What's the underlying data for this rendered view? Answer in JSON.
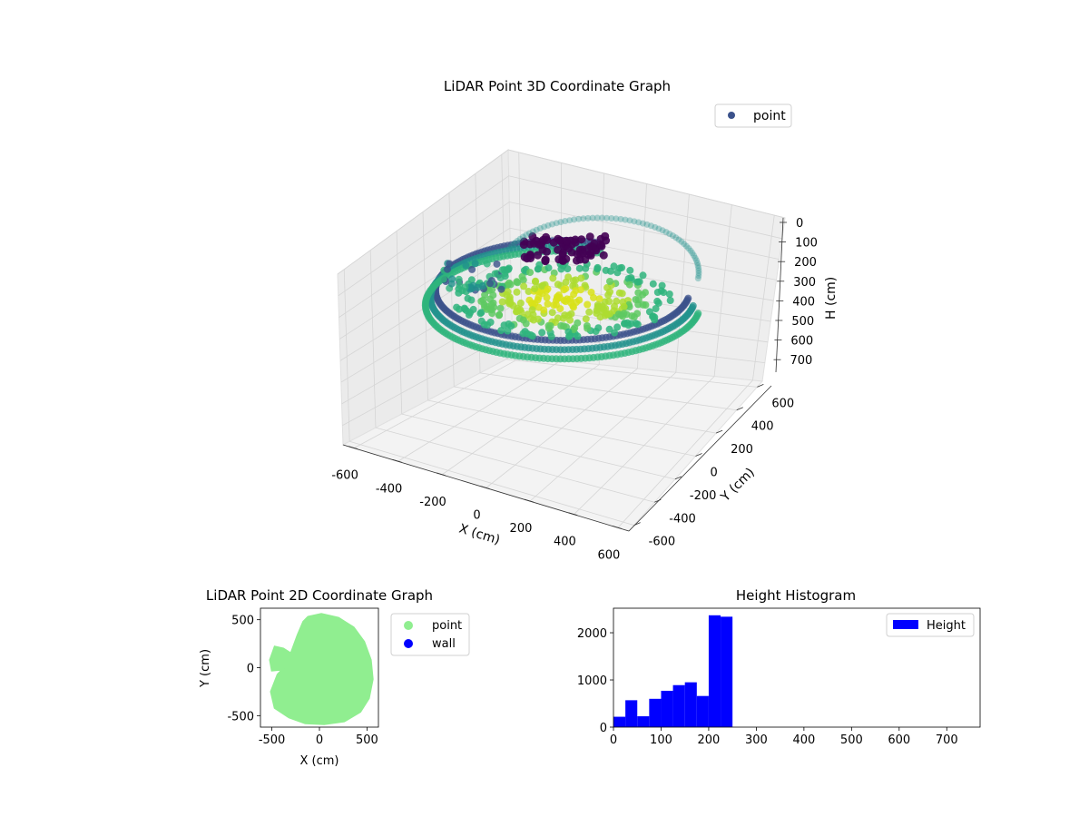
{
  "figure": {
    "background": "#ffffff"
  },
  "chart_data": [
    {
      "type": "scatter",
      "projection": "3d",
      "title": "LiDAR Point 3D Coordinate Graph",
      "xlabel": "X (cm)",
      "ylabel": "Y (cm)",
      "zlabel": "H (cm)",
      "xlim": [
        -650,
        650
      ],
      "ylim": [
        -650,
        650
      ],
      "zlim": [
        750,
        0
      ],
      "z_inverted": true,
      "xticks": [
        -600,
        -400,
        -200,
        0,
        200,
        400,
        600
      ],
      "yticks": [
        -600,
        -400,
        -200,
        0,
        200,
        400,
        600
      ],
      "zticks": [
        0,
        100,
        200,
        300,
        400,
        500,
        600,
        700
      ],
      "grid": true,
      "colormap": "viridis",
      "legend": {
        "placement": "upper-right",
        "entries": [
          {
            "label": "point",
            "color": "#3b528b"
          }
        ]
      }
    },
    {
      "type": "scatter",
      "title": "LiDAR Point 2D Coordinate Graph",
      "xlabel": "X (cm)",
      "ylabel": "Y (cm)",
      "xlim": [
        -620,
        620
      ],
      "ylim": [
        -620,
        620
      ],
      "xticks": [
        -500,
        0,
        500
      ],
      "yticks": [
        -500,
        0,
        500
      ],
      "aspect": "equal",
      "series": [
        {
          "name": "point",
          "color": "#90ee90"
        },
        {
          "name": "wall",
          "color": "#0000ff"
        }
      ],
      "legend": {
        "placement": "outside-right"
      }
    },
    {
      "type": "bar",
      "subtype": "histogram",
      "title": "Height Histogram",
      "color": "#0000ff",
      "bin_edges": [
        0,
        25,
        50,
        75,
        100,
        125,
        150,
        175,
        200,
        225,
        250,
        275
      ],
      "values": [
        220,
        570,
        230,
        600,
        770,
        890,
        950,
        660,
        2370,
        2340,
        0
      ],
      "xlim": [
        0,
        770
      ],
      "ylim": [
        0,
        2520
      ],
      "xticks": [
        0,
        100,
        200,
        300,
        400,
        500,
        600,
        700
      ],
      "yticks": [
        0,
        1000,
        2000
      ],
      "legend": {
        "placement": "upper-right",
        "entries": [
          {
            "label": "Height",
            "color": "#0000ff"
          }
        ]
      }
    }
  ]
}
